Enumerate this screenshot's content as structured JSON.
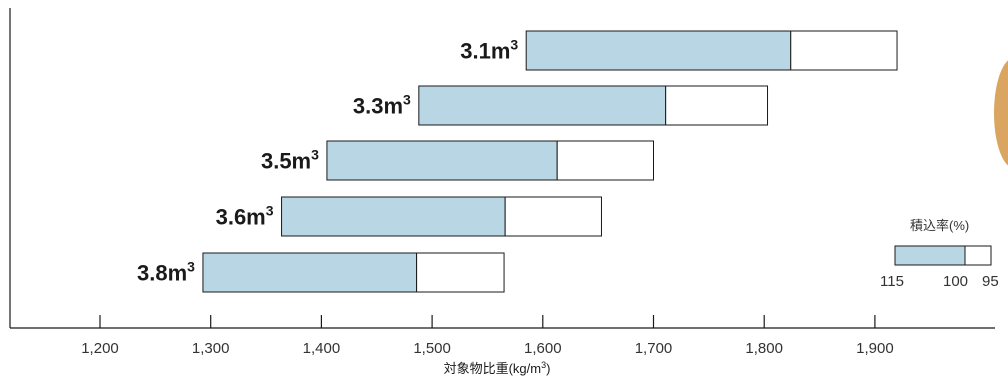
{
  "chart_data": {
    "type": "bar",
    "orientation": "horizontal-range",
    "xlabel_prefix": "対象物比重(kg/m",
    "xlabel_sup": "3",
    "xlabel_suffix": ")",
    "xlim": [
      1110,
      1990
    ],
    "xticks": [
      1200,
      1300,
      1400,
      1500,
      1600,
      1700,
      1800,
      1900
    ],
    "xtick_labels": [
      "1,200",
      "1,300",
      "1,400",
      "1,500",
      "1,600",
      "1,700",
      "1,800",
      "1,900"
    ],
    "categories": [
      "3.1m3",
      "3.3m3",
      "3.5m3",
      "3.6m3",
      "3.8m3"
    ],
    "label_main": [
      "3.1m",
      "3.3m",
      "3.5m",
      "3.6m",
      "3.8m"
    ],
    "label_sup": "3",
    "ranges": [
      {
        "start_115": 1585,
        "mid_100": 1824,
        "end_95": 1920
      },
      {
        "start_115": 1488,
        "mid_100": 1711,
        "end_95": 1803
      },
      {
        "start_115": 1405,
        "mid_100": 1613,
        "end_95": 1700
      },
      {
        "start_115": 1364,
        "mid_100": 1566,
        "end_95": 1653
      },
      {
        "start_115": 1293,
        "mid_100": 1486,
        "end_95": 1565
      }
    ],
    "colors": {
      "filled": "#b8d6e3",
      "empty": "#ffffff",
      "stroke": "#1a1a1a"
    },
    "legend": {
      "title": "積込率(%)",
      "values": [
        "115",
        "100",
        "95"
      ],
      "placement": "bottom-right"
    }
  }
}
